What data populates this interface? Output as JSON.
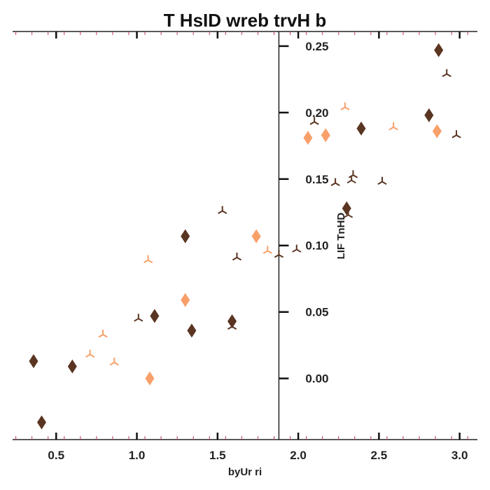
{
  "chart_data": {
    "type": "scatter",
    "title": "T HsID wreb  trvH b",
    "xlabel": "byUr ri",
    "ylabel": "LIF TnHD",
    "xlim": [
      0.23,
      3.11
    ],
    "ylim": [
      -0.046,
      0.261
    ],
    "x_ticks": [
      0.5,
      1.0,
      1.5,
      2.0,
      2.5,
      3.0
    ],
    "x_tick_labels": [
      "0.5",
      "1.0",
      "1.5",
      "2.0",
      "2.5",
      "3.0"
    ],
    "y_ticks": [
      0.0,
      0.05,
      0.1,
      0.15,
      0.2,
      0.25
    ],
    "y_tick_labels": [
      "0.00",
      "0.05",
      "0.10",
      "0.15",
      "0.20",
      "0.25"
    ],
    "y_axis_at_x": 1.88,
    "grid": false,
    "colors": {
      "dark": "#5a3522",
      "light": "#f9a06a",
      "minor_tick": "#c0395a"
    },
    "series": [
      {
        "marker": "diamond",
        "color": "#5a3522",
        "points": [
          [
            0.36,
            0.013
          ],
          [
            0.41,
            -0.033
          ],
          [
            0.6,
            0.009
          ],
          [
            1.11,
            0.047
          ],
          [
            1.3,
            0.107
          ],
          [
            1.34,
            0.036
          ],
          [
            1.59,
            0.043
          ],
          [
            2.3,
            0.128
          ],
          [
            2.39,
            0.188
          ],
          [
            2.81,
            0.198
          ],
          [
            2.87,
            0.247
          ]
        ]
      },
      {
        "marker": "diamond",
        "color": "#f9a06a",
        "points": [
          [
            1.08,
            0.0
          ],
          [
            1.3,
            0.059
          ],
          [
            1.74,
            0.107
          ],
          [
            2.06,
            0.181
          ],
          [
            2.17,
            0.183
          ],
          [
            2.86,
            0.186
          ]
        ]
      },
      {
        "marker": "tri",
        "color": "#5a3522",
        "points": [
          [
            1.01,
            0.045
          ],
          [
            1.53,
            0.126
          ],
          [
            1.59,
            0.039
          ],
          [
            1.62,
            0.091
          ],
          [
            1.88,
            0.093
          ],
          [
            1.99,
            0.097
          ],
          [
            2.1,
            0.193
          ],
          [
            2.23,
            0.147
          ],
          [
            2.31,
            0.123
          ],
          [
            2.33,
            0.149
          ],
          [
            2.34,
            0.153
          ],
          [
            2.52,
            0.148
          ],
          [
            2.92,
            0.229
          ],
          [
            2.98,
            0.183
          ]
        ]
      },
      {
        "marker": "tri",
        "color": "#f9a06a",
        "points": [
          [
            0.71,
            0.018
          ],
          [
            0.79,
            0.033
          ],
          [
            0.86,
            0.012
          ],
          [
            1.07,
            0.089
          ],
          [
            1.81,
            0.096
          ],
          [
            2.29,
            0.204
          ],
          [
            2.59,
            0.189
          ]
        ]
      }
    ]
  }
}
